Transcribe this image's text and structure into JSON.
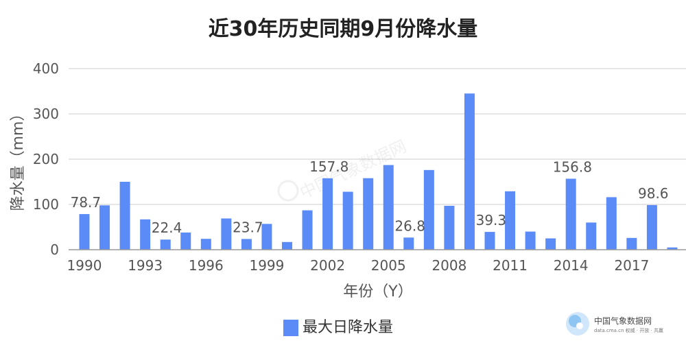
{
  "chart_data": {
    "type": "bar",
    "title": "近30年历史同期9月份降水量",
    "xlabel": "年份（Y）",
    "ylabel": "降水量（mm）",
    "ylim": [
      0,
      400
    ],
    "yticks": [
      0,
      100,
      200,
      300,
      400
    ],
    "xtick_labels": [
      "1990",
      "1993",
      "1996",
      "1999",
      "2002",
      "2005",
      "2008",
      "2011",
      "2014",
      "2017"
    ],
    "categories": [
      "1990",
      "1991",
      "1992",
      "1993",
      "1994",
      "1995",
      "1996",
      "1997",
      "1998",
      "1999",
      "2000",
      "2001",
      "2002",
      "2003",
      "2004",
      "2005",
      "2006",
      "2007",
      "2008",
      "2009",
      "2010",
      "2011",
      "2012",
      "2013",
      "2014",
      "2015",
      "2016",
      "2017",
      "2018",
      "2019"
    ],
    "series": [
      {
        "name": "最大日降水量",
        "color": "#5B8BF7",
        "values": [
          78.7,
          98,
          150,
          67,
          22.4,
          38,
          24,
          69,
          23.7,
          57,
          17,
          87,
          157.8,
          128,
          158,
          187,
          26.8,
          176,
          97,
          345,
          39.3,
          129,
          40,
          25,
          156.8,
          60,
          116,
          26,
          98.6,
          5
        ]
      }
    ],
    "data_labels": [
      {
        "index": 0,
        "text": "78.7"
      },
      {
        "index": 4,
        "text": "22.4"
      },
      {
        "index": 8,
        "text": "23.7"
      },
      {
        "index": 12,
        "text": "157.8"
      },
      {
        "index": 16,
        "text": "26.8"
      },
      {
        "index": 20,
        "text": "39.3"
      },
      {
        "index": 24,
        "text": "156.8"
      },
      {
        "index": 28,
        "text": "98.6"
      }
    ],
    "grid": true,
    "legend": "bottom-center"
  },
  "watermark": {
    "text": "中国气象数据网",
    "subtext": "data.cma.cn 权威 · 开放 · 共赢",
    "center_text": "中国气象数据网"
  }
}
